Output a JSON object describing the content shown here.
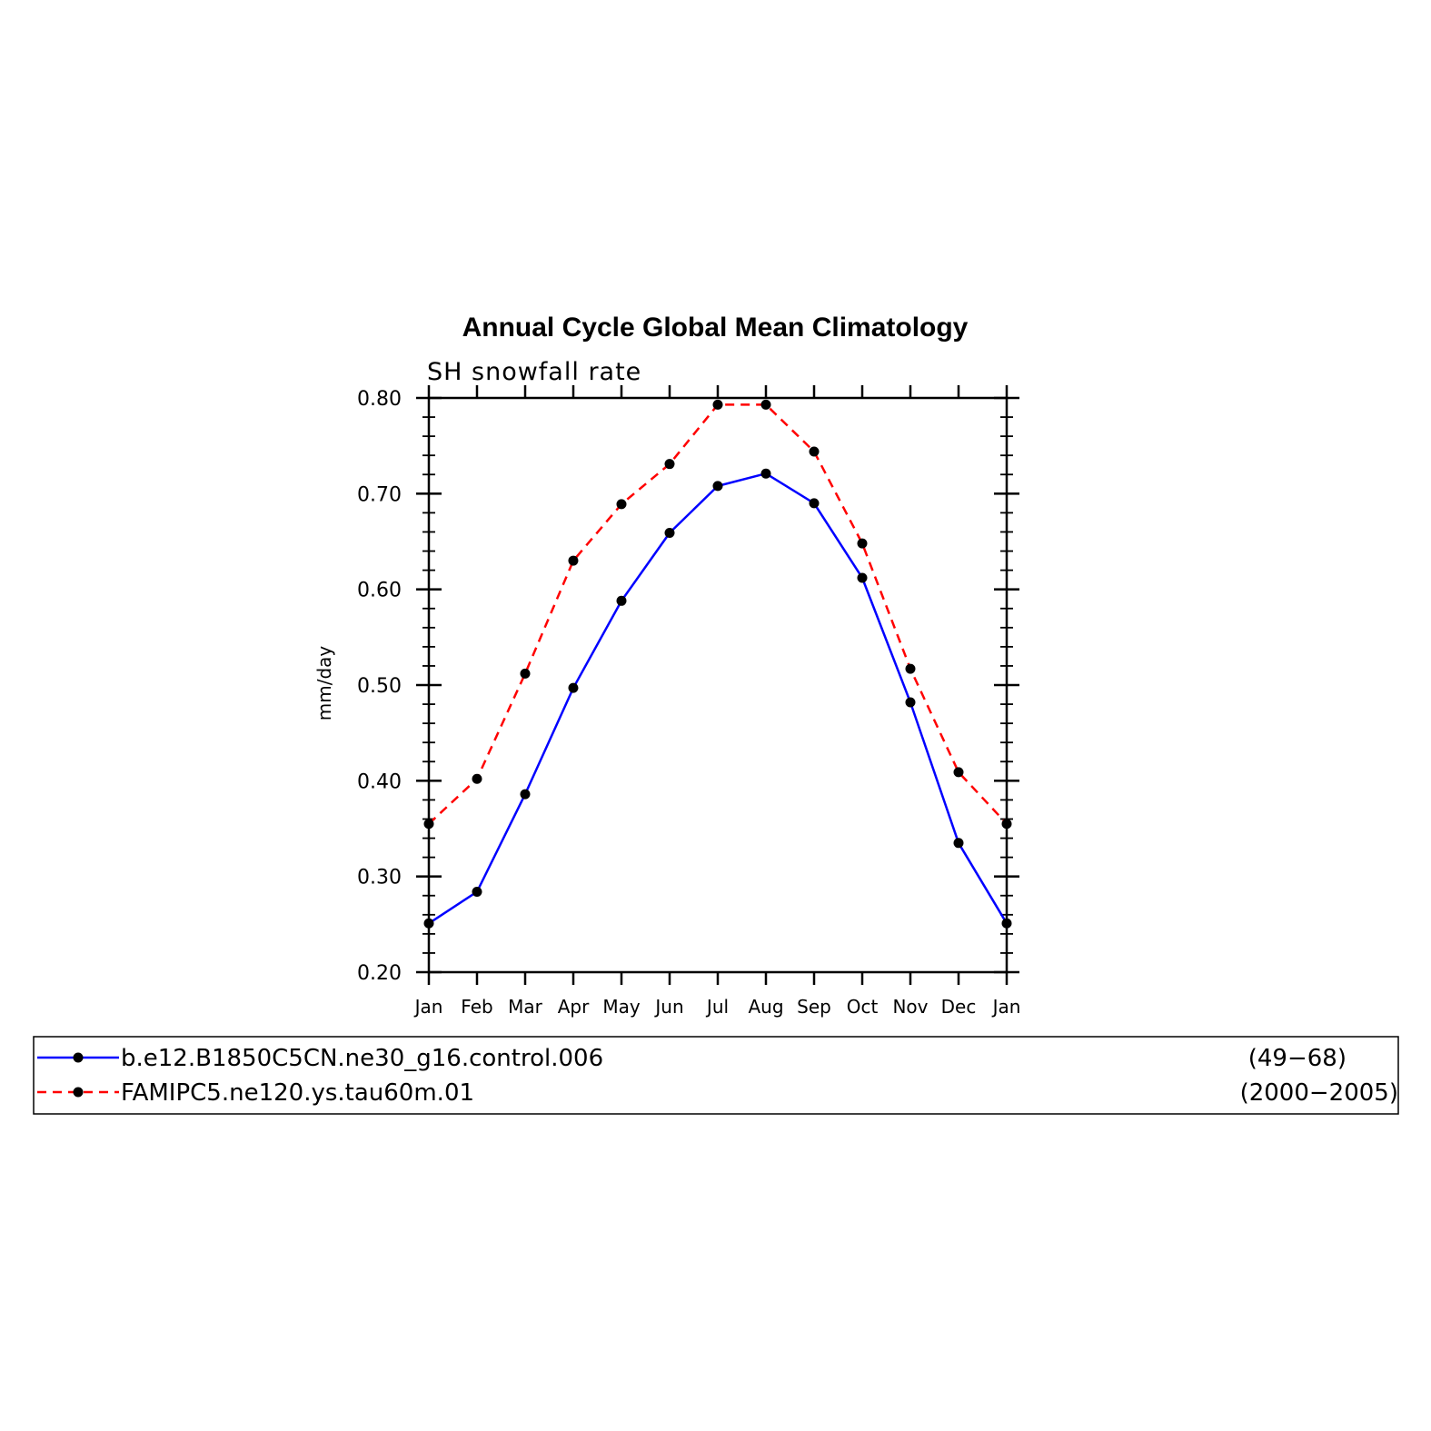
{
  "chart_data": {
    "type": "line",
    "title": "Annual Cycle Global Mean Climatology",
    "subtitle": "SH snowfall rate",
    "ylabel": "mm/day",
    "xlabel": "",
    "ylim": [
      0.2,
      0.8
    ],
    "y_ticks": [
      "0.20",
      "0.30",
      "0.40",
      "0.50",
      "0.60",
      "0.70",
      "0.80"
    ],
    "categories": [
      "Jan",
      "Feb",
      "Mar",
      "Apr",
      "May",
      "Jun",
      "Jul",
      "Aug",
      "Sep",
      "Oct",
      "Nov",
      "Dec",
      "Jan"
    ],
    "grid": false,
    "legend_position": "bottom",
    "series": [
      {
        "name": "b.e12.B1850C5CN.ne30_g16.control.006",
        "period": "(49−68)",
        "color": "#0000ff",
        "line_style": "solid",
        "values": [
          0.251,
          0.284,
          0.386,
          0.497,
          0.588,
          0.659,
          0.708,
          0.721,
          0.69,
          0.612,
          0.482,
          0.335,
          0.251
        ]
      },
      {
        "name": "FAMIPC5.ne120.ys.tau60m.01",
        "period": "(2000−2005)",
        "color": "#ff0000",
        "line_style": "dashed",
        "values": [
          0.355,
          0.402,
          0.512,
          0.63,
          0.689,
          0.731,
          0.793,
          0.793,
          0.744,
          0.648,
          0.517,
          0.409,
          0.355
        ]
      }
    ]
  }
}
